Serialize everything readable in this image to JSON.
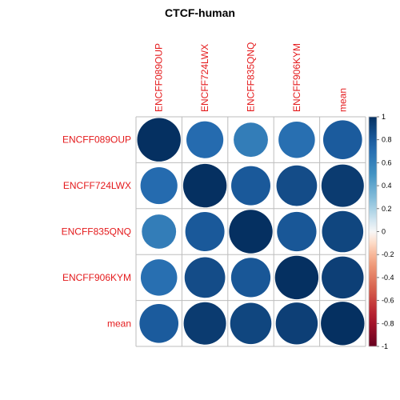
{
  "chart_data": {
    "type": "heatmap",
    "title": "CTCF-human",
    "rows": [
      "ENCFF089OUP",
      "ENCFF724LWX",
      "ENCFF835QNQ",
      "ENCFF906KYM",
      "mean"
    ],
    "columns": [
      "ENCFF089OUP",
      "ENCFF724LWX",
      "ENCFF835QNQ",
      "ENCFF906KYM",
      "mean"
    ],
    "values": [
      [
        1.0,
        0.72,
        0.62,
        0.7,
        0.8
      ],
      [
        0.72,
        1.0,
        0.81,
        0.87,
        0.95
      ],
      [
        0.62,
        0.81,
        1.0,
        0.82,
        0.9
      ],
      [
        0.7,
        0.87,
        0.82,
        1.0,
        0.93
      ],
      [
        0.8,
        0.95,
        0.9,
        0.93,
        1.0
      ]
    ],
    "colorbar": {
      "ticks": [
        "1",
        "0.8",
        "0.6",
        "0.4",
        "0.2",
        "0",
        "-0.2",
        "-0.4",
        "-0.6",
        "-0.8",
        "-1"
      ],
      "range": [
        -1,
        1
      ]
    },
    "label_color": "#e41a1c",
    "grid": true
  }
}
